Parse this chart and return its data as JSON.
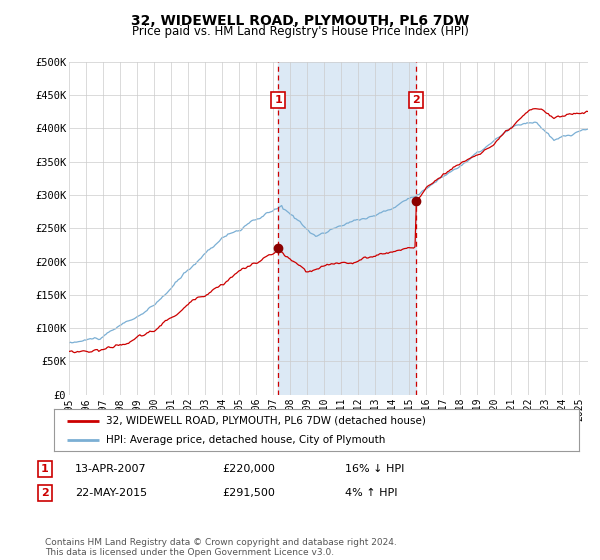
{
  "title": "32, WIDEWELL ROAD, PLYMOUTH, PL6 7DW",
  "subtitle": "Price paid vs. HM Land Registry's House Price Index (HPI)",
  "ylim": [
    0,
    500000
  ],
  "yticks": [
    0,
    50000,
    100000,
    150000,
    200000,
    250000,
    300000,
    350000,
    400000,
    450000,
    500000
  ],
  "ytick_labels": [
    "£0",
    "£50K",
    "£100K",
    "£150K",
    "£200K",
    "£250K",
    "£300K",
    "£350K",
    "£400K",
    "£450K",
    "£500K"
  ],
  "xlim_start": 1995.0,
  "xlim_end": 2025.5,
  "xticks": [
    1995,
    1996,
    1997,
    1998,
    1999,
    2000,
    2001,
    2002,
    2003,
    2004,
    2005,
    2006,
    2007,
    2008,
    2009,
    2010,
    2011,
    2012,
    2013,
    2014,
    2015,
    2016,
    2017,
    2018,
    2019,
    2020,
    2021,
    2022,
    2023,
    2024,
    2025
  ],
  "sale1_x": 2007.287,
  "sale1_y": 220000,
  "sale2_x": 2015.386,
  "sale2_y": 291500,
  "shade_start": 2007.287,
  "shade_end": 2015.386,
  "red_line_color": "#cc0000",
  "blue_line_color": "#7bafd4",
  "shade_color": "#dce9f5",
  "dot_color": "#8b0000",
  "vline_color": "#cc0000",
  "box_color": "#cc0000",
  "grid_color": "#cccccc",
  "bg_color": "#ffffff",
  "legend_line1": "32, WIDEWELL ROAD, PLYMOUTH, PL6 7DW (detached house)",
  "legend_line2": "HPI: Average price, detached house, City of Plymouth",
  "annot1_date": "13-APR-2007",
  "annot1_price": "£220,000",
  "annot1_hpi": "16% ↓ HPI",
  "annot2_date": "22-MAY-2015",
  "annot2_price": "£291,500",
  "annot2_hpi": "4% ↑ HPI",
  "footnote": "Contains HM Land Registry data © Crown copyright and database right 2024.\nThis data is licensed under the Open Government Licence v3.0."
}
